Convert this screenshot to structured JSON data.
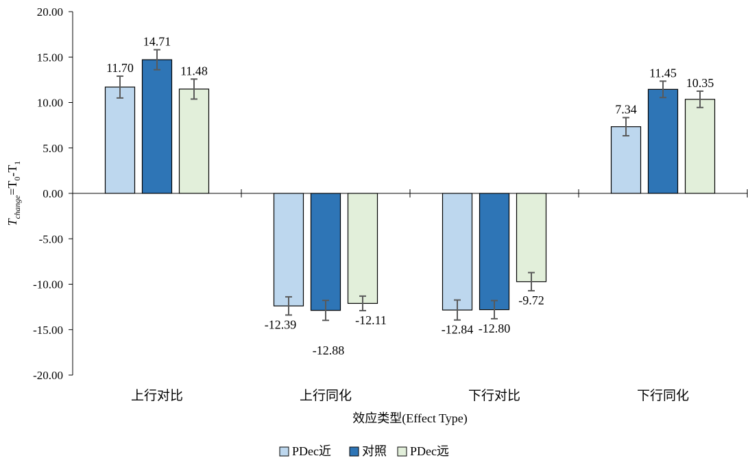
{
  "chart_data": {
    "type": "bar",
    "categories": [
      "上行对比",
      "上行同化",
      "下行对比",
      "下行同化"
    ],
    "series": [
      {
        "name": "PDec近",
        "color": "#BDD7EE",
        "values": [
          11.7,
          -12.39,
          -12.84,
          7.34
        ],
        "errors": [
          1.2,
          1.0,
          1.1,
          1.0
        ]
      },
      {
        "name": "对照",
        "color": "#2E75B6",
        "values": [
          14.71,
          -12.88,
          -12.8,
          11.45
        ],
        "errors": [
          1.1,
          1.1,
          1.0,
          0.9
        ]
      },
      {
        "name": "PDec远",
        "color": "#E2EFDA",
        "values": [
          11.48,
          -12.11,
          -9.72,
          10.35
        ],
        "errors": [
          1.1,
          0.8,
          1.0,
          0.9
        ]
      }
    ],
    "data_labels": [
      [
        "11.70",
        "-12.39",
        "-12.84",
        "7.34"
      ],
      [
        "14.71",
        "-12.88",
        "-12.80",
        "11.45"
      ],
      [
        "11.48",
        "-12.11",
        "-9.72",
        "10.35"
      ]
    ],
    "yticks": [
      "20.00",
      "15.00",
      "10.00",
      "5.00",
      "0.00",
      "-5.00",
      "-10.00",
      "-15.00",
      "-20.00"
    ],
    "ylim": [
      -20,
      20
    ],
    "xlabel": "效应类型(Effect Type)",
    "ylabel": {
      "base": "T",
      "sub": "change",
      "rest": "=T",
      "sub2": "0",
      "rest2": "-T",
      "sub3": "1"
    },
    "legend_position": "bottom",
    "grid": false,
    "error_bars": true
  }
}
